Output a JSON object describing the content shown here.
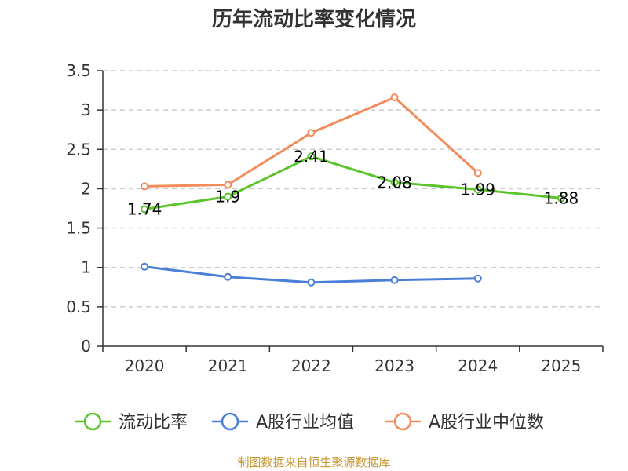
{
  "chart_data": {
    "type": "line",
    "title": "历年流动比率变化情况",
    "categories": [
      "2020",
      "2021",
      "2022",
      "2023",
      "2024",
      "2025"
    ],
    "ylim": [
      0,
      3.5
    ],
    "yticks": [
      "0",
      "0.5",
      "1",
      "1.5",
      "2",
      "2.5",
      "3",
      "3.5"
    ],
    "grid": "horizontal dashed",
    "legend_position": "bottom",
    "series": [
      {
        "name": "流动比率",
        "color": "#5bc42b",
        "values": [
          1.74,
          1.9,
          2.41,
          2.08,
          1.99,
          1.88
        ],
        "labels": [
          "1.74",
          "1.9",
          "2.41",
          "2.08",
          "1.99",
          "1.88"
        ]
      },
      {
        "name": "A股行业均值",
        "color": "#4a7fd9",
        "values": [
          1.01,
          0.88,
          0.81,
          0.84,
          0.86,
          null
        ]
      },
      {
        "name": "A股行业中位数",
        "color": "#f28c5a",
        "values": [
          2.03,
          2.05,
          2.71,
          3.16,
          2.2,
          null
        ]
      }
    ]
  },
  "source": "制图数据来自恒生聚源数据库"
}
